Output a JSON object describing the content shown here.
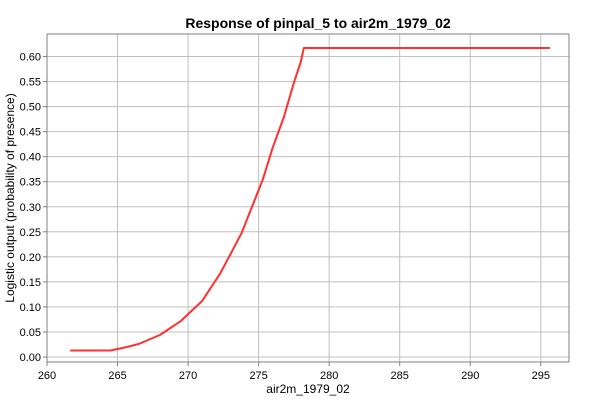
{
  "chart_data": {
    "type": "line",
    "title": "Response of pinpal_5 to air2m_1979_02",
    "xlabel": "air2m_1979_02",
    "ylabel": "Logistic output (probability of presence)",
    "xlim": [
      260,
      297
    ],
    "ylim": [
      -0.01,
      0.645
    ],
    "x_ticks": [
      260,
      265,
      270,
      275,
      280,
      285,
      290,
      295
    ],
    "y_ticks": [
      0.0,
      0.05,
      0.1,
      0.15,
      0.2,
      0.25,
      0.3,
      0.35,
      0.4,
      0.45,
      0.5,
      0.55,
      0.6
    ],
    "x_tick_labels": [
      "260",
      "265",
      "270",
      "275",
      "280",
      "285",
      "290",
      "295"
    ],
    "y_tick_labels": [
      "0.00",
      "0.05",
      "0.10",
      "0.15",
      "0.20",
      "0.25",
      "0.30",
      "0.35",
      "0.40",
      "0.45",
      "0.50",
      "0.55",
      "0.60"
    ],
    "grid": true,
    "series": [
      {
        "color": "#ff3030",
        "x": [
          261.7,
          264.5,
          265.5,
          266.5,
          268.0,
          269.5,
          271.0,
          272.3,
          273.0,
          273.8,
          274.5,
          275.3,
          276.0,
          276.8,
          277.5,
          278.0,
          278.2,
          280.0,
          285.0,
          290.0,
          295.6
        ],
        "y": [
          0.013,
          0.013,
          0.019,
          0.026,
          0.044,
          0.072,
          0.112,
          0.168,
          0.205,
          0.248,
          0.298,
          0.355,
          0.418,
          0.48,
          0.548,
          0.59,
          0.617,
          0.617,
          0.617,
          0.617,
          0.617
        ]
      }
    ]
  }
}
